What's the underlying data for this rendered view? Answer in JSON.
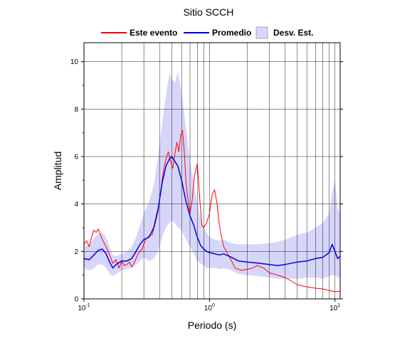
{
  "chart_data": {
    "type": "line",
    "title": "Sitio SCCH",
    "xlabel": "Periodo (s)",
    "ylabel": "Amplitud",
    "xscale": "log",
    "xlim": [
      0.1,
      11
    ],
    "ylim": [
      0,
      10.8
    ],
    "grid": true,
    "legend_position": "top",
    "x_ticks": [
      {
        "value": 0.1,
        "base": "10",
        "exp": "-1"
      },
      {
        "value": 1,
        "base": "10",
        "exp": "0"
      },
      {
        "value": 10,
        "base": "10",
        "exp": "1"
      }
    ],
    "y_ticks": [
      0,
      2,
      4,
      6,
      8,
      10
    ],
    "series": [
      {
        "name": "Este evento",
        "color": "#ff0000",
        "x": [
          0.1,
          0.105,
          0.11,
          0.115,
          0.12,
          0.125,
          0.13,
          0.135,
          0.14,
          0.15,
          0.16,
          0.17,
          0.18,
          0.19,
          0.2,
          0.21,
          0.22,
          0.23,
          0.24,
          0.25,
          0.27,
          0.29,
          0.31,
          0.33,
          0.35,
          0.37,
          0.39,
          0.41,
          0.43,
          0.45,
          0.47,
          0.49,
          0.51,
          0.53,
          0.55,
          0.57,
          0.59,
          0.61,
          0.63,
          0.65,
          0.67,
          0.7,
          0.73,
          0.76,
          0.8,
          0.84,
          0.87,
          0.9,
          0.95,
          1.0,
          1.05,
          1.1,
          1.15,
          1.2,
          1.25,
          1.3,
          1.4,
          1.5,
          1.6,
          1.7,
          1.8,
          2.0,
          2.2,
          2.4,
          2.7,
          3.0,
          3.5,
          4.0,
          4.5,
          5.0,
          6.0,
          7.0,
          8.0,
          9.0,
          10.0,
          11.0
        ],
        "y": [
          2.3,
          2.45,
          2.2,
          2.6,
          2.9,
          2.8,
          2.95,
          2.7,
          2.5,
          2.2,
          1.85,
          1.5,
          1.65,
          1.3,
          1.6,
          1.4,
          1.45,
          1.55,
          1.35,
          1.5,
          1.9,
          2.1,
          2.5,
          2.65,
          2.7,
          3.2,
          3.7,
          4.6,
          5.4,
          5.9,
          6.2,
          5.8,
          5.5,
          6.1,
          6.6,
          6.2,
          6.9,
          7.1,
          6.2,
          4.9,
          4.3,
          3.6,
          4.2,
          5.2,
          5.7,
          4.1,
          3.1,
          3.0,
          3.2,
          3.6,
          4.4,
          4.6,
          4.0,
          3.1,
          2.6,
          2.2,
          1.9,
          1.6,
          1.3,
          1.25,
          1.2,
          1.25,
          1.3,
          1.4,
          1.3,
          1.1,
          1.0,
          0.9,
          0.75,
          0.6,
          0.5,
          0.45,
          0.42,
          0.35,
          0.3,
          0.32
        ]
      },
      {
        "name": "Promedio",
        "color": "#0000dd",
        "x": [
          0.1,
          0.11,
          0.12,
          0.13,
          0.14,
          0.15,
          0.16,
          0.17,
          0.18,
          0.2,
          0.22,
          0.24,
          0.26,
          0.28,
          0.3,
          0.33,
          0.36,
          0.39,
          0.42,
          0.45,
          0.48,
          0.5,
          0.53,
          0.56,
          0.6,
          0.65,
          0.7,
          0.75,
          0.8,
          0.85,
          0.9,
          0.95,
          1.0,
          1.1,
          1.2,
          1.3,
          1.5,
          1.7,
          2.0,
          2.5,
          3.0,
          3.5,
          4.0,
          5.0,
          6.0,
          7.0,
          8.0,
          9.0,
          9.5,
          10.0,
          10.5,
          11.0
        ],
        "y": [
          1.7,
          1.65,
          1.85,
          2.05,
          2.1,
          1.9,
          1.55,
          1.3,
          1.45,
          1.6,
          1.6,
          1.7,
          2.0,
          2.3,
          2.5,
          2.6,
          3.0,
          3.8,
          4.9,
          5.6,
          5.9,
          6.0,
          5.8,
          5.6,
          5.0,
          4.1,
          3.5,
          3.1,
          2.6,
          2.25,
          2.1,
          2.0,
          1.95,
          1.9,
          1.85,
          1.9,
          1.75,
          1.6,
          1.55,
          1.5,
          1.45,
          1.4,
          1.45,
          1.55,
          1.6,
          1.7,
          1.75,
          1.95,
          2.3,
          2.0,
          1.7,
          1.8
        ]
      },
      {
        "name": "Desv. Est.",
        "color": "#c8c8ff",
        "x": [
          0.1,
          0.11,
          0.12,
          0.13,
          0.14,
          0.15,
          0.16,
          0.17,
          0.18,
          0.2,
          0.22,
          0.24,
          0.26,
          0.28,
          0.3,
          0.33,
          0.36,
          0.39,
          0.42,
          0.45,
          0.48,
          0.5,
          0.53,
          0.56,
          0.6,
          0.65,
          0.7,
          0.75,
          0.8,
          0.85,
          0.9,
          0.95,
          1.0,
          1.1,
          1.2,
          1.3,
          1.5,
          1.7,
          2.0,
          2.5,
          3.0,
          3.5,
          4.0,
          5.0,
          6.0,
          7.0,
          8.0,
          9.0,
          9.5,
          10.0,
          10.5,
          11.0
        ],
        "upper": [
          2.2,
          2.3,
          2.55,
          2.75,
          2.8,
          2.6,
          2.2,
          1.85,
          1.8,
          1.9,
          2.0,
          2.2,
          2.6,
          3.1,
          3.6,
          4.1,
          4.8,
          6.0,
          7.4,
          8.6,
          9.5,
          9.3,
          9.1,
          9.6,
          8.7,
          7.2,
          5.8,
          4.9,
          4.0,
          3.4,
          3.0,
          2.8,
          2.6,
          2.5,
          2.45,
          2.5,
          2.35,
          2.3,
          2.3,
          2.3,
          2.35,
          2.4,
          2.5,
          2.7,
          2.8,
          3.0,
          3.2,
          3.6,
          4.5,
          5.0,
          3.8,
          3.6
        ],
        "lower": [
          1.3,
          1.2,
          1.3,
          1.45,
          1.45,
          1.3,
          1.05,
          0.95,
          1.05,
          1.2,
          1.25,
          1.3,
          1.45,
          1.6,
          1.75,
          1.6,
          1.7,
          2.0,
          2.6,
          3.0,
          3.2,
          3.3,
          3.2,
          3.0,
          2.9,
          2.5,
          2.2,
          1.9,
          1.6,
          1.5,
          1.4,
          1.3,
          1.3,
          1.3,
          1.25,
          1.3,
          1.2,
          1.05,
          1.0,
          0.95,
          0.9,
          0.85,
          0.85,
          0.85,
          0.9,
          0.9,
          0.85,
          0.95,
          1.0,
          1.0,
          0.9,
          0.9
        ]
      }
    ]
  }
}
